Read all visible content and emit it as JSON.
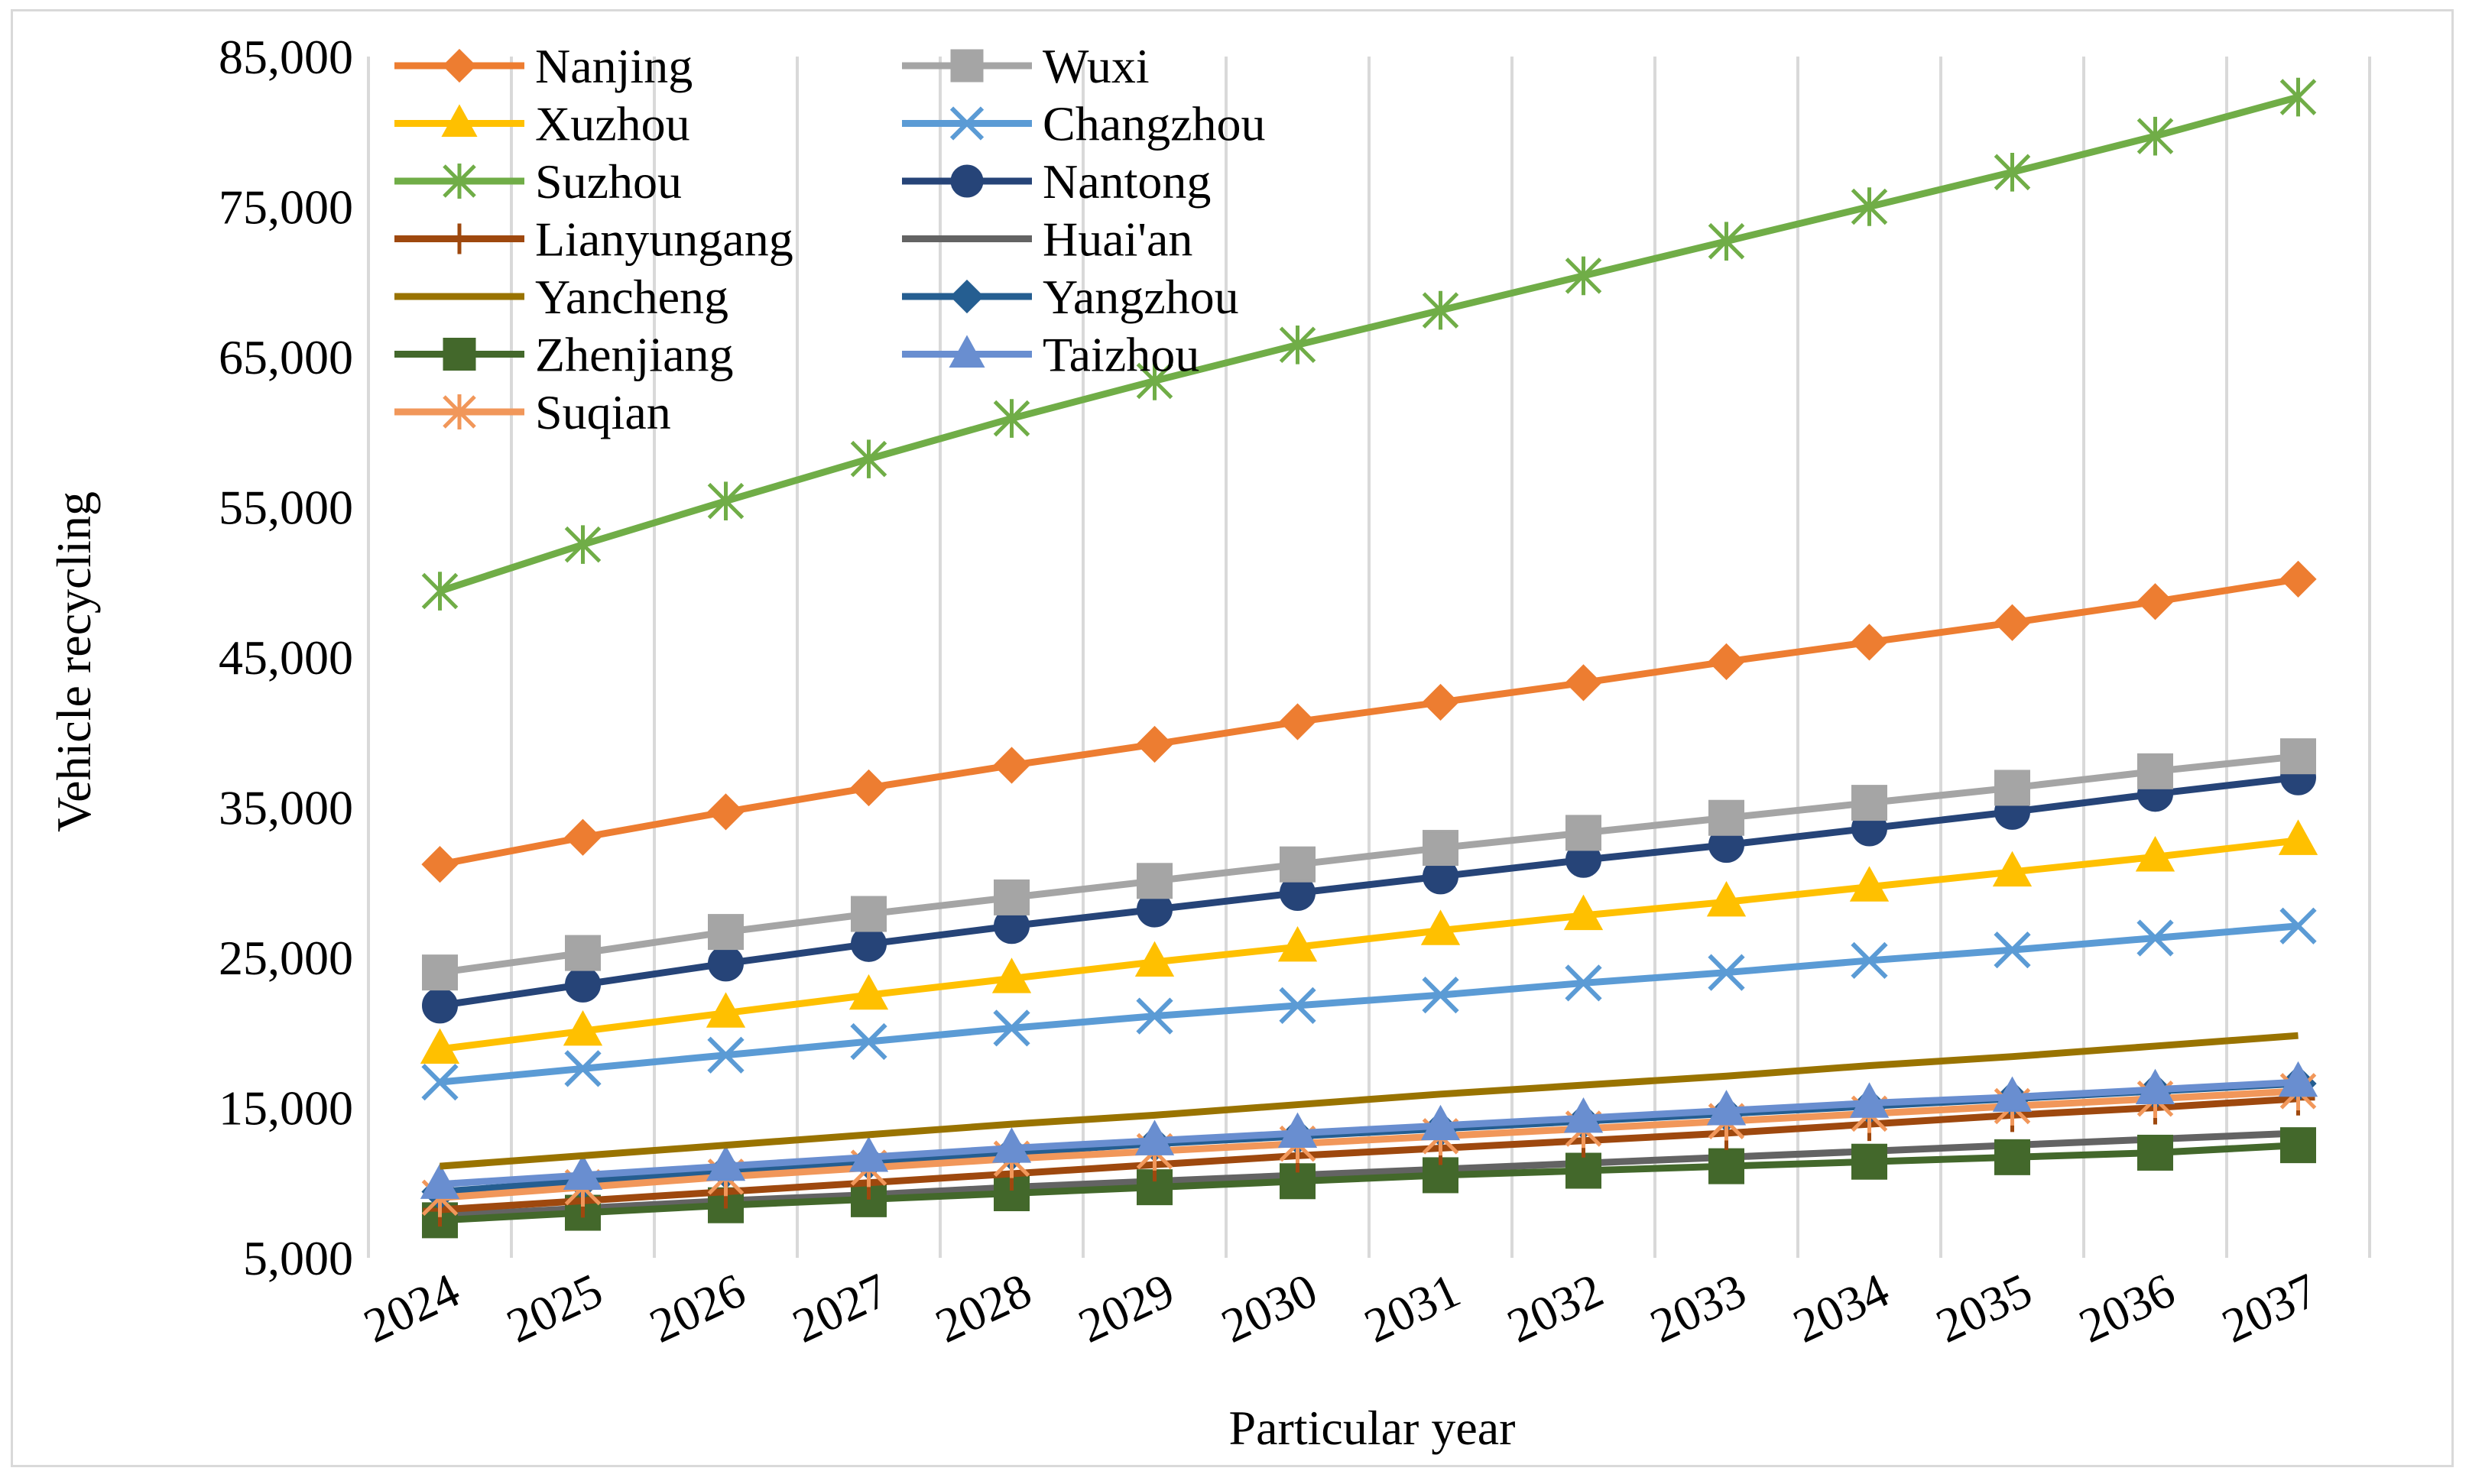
{
  "chart_data": {
    "type": "line",
    "title": "",
    "xlabel": "Particular year",
    "ylabel": "Vehicle recycling",
    "ylim": [
      5000,
      85000
    ],
    "yticks": [
      5000,
      15000,
      25000,
      35000,
      45000,
      55000,
      65000,
      75000,
      85000
    ],
    "ytick_labels": [
      "5,000",
      "15,000",
      "25,000",
      "35,000",
      "45,000",
      "55,000",
      "65,000",
      "75,000",
      "85,000"
    ],
    "categories": [
      "2024",
      "2025",
      "2026",
      "2027",
      "2028",
      "2029",
      "2030",
      "2031",
      "2032",
      "2033",
      "2034",
      "2035",
      "2036",
      "2037"
    ],
    "grid": "vertical",
    "legend_position": "top-left",
    "series": [
      {
        "name": "Nanjing",
        "color": "#ed7d31",
        "marker": "diamond",
        "values": [
          31200,
          33000,
          34700,
          36300,
          37800,
          39200,
          40700,
          42000,
          43300,
          44700,
          46000,
          47300,
          48700,
          50200
        ]
      },
      {
        "name": "Wuxi",
        "color": "#a5a5a5",
        "marker": "square",
        "values": [
          24000,
          25300,
          26700,
          27900,
          29000,
          30100,
          31200,
          32300,
          33300,
          34300,
          35300,
          36300,
          37400,
          38400
        ]
      },
      {
        "name": "Xuzhou",
        "color": "#ffc000",
        "marker": "triangle",
        "values": [
          18900,
          20100,
          21300,
          22500,
          23600,
          24700,
          25700,
          26800,
          27800,
          28700,
          29700,
          30700,
          31700,
          32800
        ]
      },
      {
        "name": "Changzhou",
        "color": "#5b9bd5",
        "marker": "x",
        "values": [
          16700,
          17600,
          18500,
          19400,
          20300,
          21100,
          21800,
          22500,
          23300,
          24000,
          24800,
          25500,
          26300,
          27100
        ]
      },
      {
        "name": "Suzhou",
        "color": "#70ad47",
        "marker": "asterisk",
        "values": [
          49400,
          52500,
          55400,
          58200,
          60900,
          63400,
          65800,
          68100,
          70400,
          72700,
          75000,
          77300,
          79700,
          82300
        ]
      },
      {
        "name": "Nantong",
        "color": "#264478",
        "marker": "circle",
        "values": [
          21800,
          23200,
          24600,
          25900,
          27100,
          28200,
          29300,
          30400,
          31500,
          32500,
          33600,
          34700,
          35900,
          37000
        ]
      },
      {
        "name": "Lianyungang",
        "color": "#9e480e",
        "marker": "plus",
        "values": [
          8200,
          8800,
          9400,
          10000,
          10600,
          11200,
          11800,
          12300,
          12800,
          13300,
          13900,
          14500,
          15000,
          15600
        ]
      },
      {
        "name": "Huai'an",
        "color": "#636363",
        "marker": "none",
        "values": [
          7800,
          8300,
          8800,
          9200,
          9700,
          10100,
          10500,
          10900,
          11300,
          11700,
          12100,
          12500,
          12900,
          13300
        ]
      },
      {
        "name": "Yancheng",
        "color": "#997300",
        "marker": "none",
        "values": [
          11100,
          11800,
          12500,
          13200,
          13900,
          14500,
          15200,
          15900,
          16500,
          17100,
          17800,
          18400,
          19100,
          19800
        ]
      },
      {
        "name": "Yangzhou",
        "color": "#255e91",
        "marker": "diamond",
        "values": [
          9400,
          10100,
          10800,
          11400,
          12000,
          12600,
          13100,
          13600,
          14100,
          14600,
          15100,
          15600,
          16100,
          16600
        ]
      },
      {
        "name": "Zhenjiang",
        "color": "#43682b",
        "marker": "square",
        "values": [
          7500,
          8000,
          8500,
          8900,
          9300,
          9700,
          10100,
          10500,
          10800,
          11100,
          11400,
          11700,
          12000,
          12500
        ]
      },
      {
        "name": "Taizhou",
        "color": "#698ed0",
        "marker": "triangle",
        "values": [
          9900,
          10500,
          11100,
          11700,
          12300,
          12800,
          13300,
          13800,
          14300,
          14800,
          15300,
          15700,
          16200,
          16700
        ]
      },
      {
        "name": "Suqian",
        "color": "#f1975a",
        "marker": "asterisk",
        "values": [
          9000,
          9700,
          10400,
          11000,
          11600,
          12100,
          12600,
          13100,
          13600,
          14100,
          14600,
          15100,
          15600,
          16100
        ]
      }
    ]
  }
}
